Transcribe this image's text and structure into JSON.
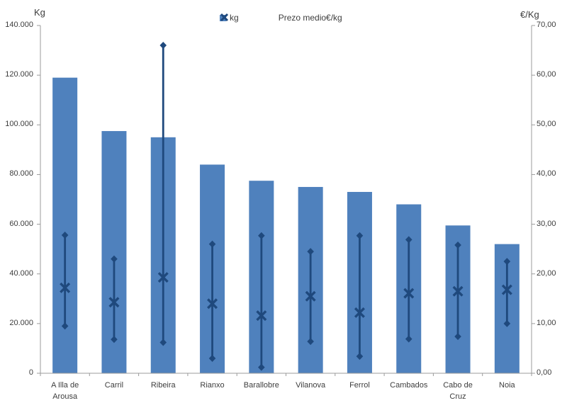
{
  "chart_data": {
    "type": "bar",
    "layout": {
      "legend_position": "top",
      "grid": false,
      "secondary_axis": true
    },
    "left_axis": {
      "label": "Kg",
      "min": 0,
      "max": 140000,
      "step": 20000,
      "tick_labels": [
        "140.000",
        "120.000",
        "100.000",
        "80.000",
        "60.000",
        "40.000",
        "20.000",
        "0"
      ]
    },
    "right_axis": {
      "label": "€/Kg",
      "min": 0,
      "max": 70,
      "step": 10,
      "tick_labels": [
        "70,00",
        "60,00",
        "50,00",
        "40,00",
        "30,00",
        "20,00",
        "10,00",
        "0,00"
      ]
    },
    "categories": [
      "A Illa de Arousa",
      "Carril",
      "Ribeira",
      "Rianxo",
      "Barallobre",
      "Vilanova",
      "Ferrol",
      "Cambados",
      "Cabo de Cruz",
      "Noia"
    ],
    "category_label_lines": [
      [
        "A Illa de",
        "Arousa"
      ],
      [
        "Carril"
      ],
      [
        "Ribeira"
      ],
      [
        "Rianxo"
      ],
      [
        "Barallobre"
      ],
      [
        "Vilanova"
      ],
      [
        "Ferrol"
      ],
      [
        "Cambados"
      ],
      [
        "Cabo de",
        "Cruz"
      ],
      [
        "Noia"
      ]
    ],
    "series": [
      {
        "name": "kg",
        "type": "bar",
        "axis": "left",
        "color": "#4f81bd",
        "values": [
          119000,
          97500,
          95000,
          84000,
          77500,
          75000,
          73000,
          68000,
          59500,
          52000
        ]
      },
      {
        "name": "Prezo medio€/kg",
        "type": "high-low-mean",
        "axis": "right",
        "color": "#1f497d",
        "high": [
          27.8,
          23.0,
          66.0,
          26.0,
          27.7,
          24.5,
          27.7,
          26.9,
          25.8,
          22.5
        ],
        "mean": [
          17.2,
          14.3,
          19.3,
          14.0,
          11.6,
          15.5,
          12.2,
          16.1,
          16.5,
          16.8
        ],
        "low": [
          9.5,
          6.8,
          6.2,
          3.0,
          1.2,
          6.4,
          3.4,
          6.9,
          7.4,
          10.0
        ]
      }
    ],
    "legend": {
      "items": [
        {
          "label": "kg",
          "marker": "square",
          "color": "#4f81bd"
        },
        {
          "label": "Prezo medio€/kg",
          "marker": "x",
          "color": "#1f497d"
        }
      ]
    },
    "colors": {
      "bar": "#4f81bd",
      "marker": "#1f497d",
      "axis_line": "#9b9b9b",
      "text": "#3d3d3d",
      "background": "#ffffff"
    }
  }
}
